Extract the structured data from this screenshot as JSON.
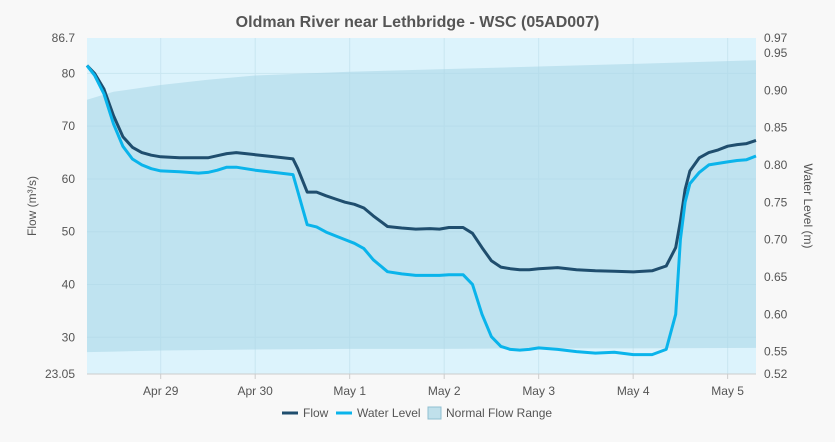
{
  "chart_data": {
    "type": "line",
    "title": "Oldman River near Lethbridge - WSC (05AD007)",
    "x_ticks": [
      "Apr 29",
      "Apr 30",
      "May 1",
      "May 2",
      "May 3",
      "May 4",
      "May 5"
    ],
    "x_range_days": [
      -0.78,
      6.3
    ],
    "y_left": {
      "label": "Flow (m³/s)",
      "range": [
        23.05,
        86.7
      ],
      "ticks": [
        30,
        40,
        50,
        60,
        70,
        80
      ],
      "min_label": "23.05",
      "max_label": "86.7"
    },
    "y_right": {
      "label": "Water Level (m)",
      "range": [
        0.52,
        0.97
      ],
      "ticks": [
        "0.55",
        "0.60",
        "0.65",
        "0.70",
        "0.75",
        "0.80",
        "0.85",
        "0.90",
        "0.95"
      ],
      "min_label": "0.52",
      "max_label": "0.97"
    },
    "grid": true,
    "legend_position": "bottom",
    "series": [
      {
        "name": "Flow",
        "axis": "left",
        "color": "#1f4e6e",
        "x": [
          -0.78,
          -0.7,
          -0.6,
          -0.5,
          -0.4,
          -0.3,
          -0.2,
          -0.1,
          0.0,
          0.2,
          0.4,
          0.5,
          0.6,
          0.7,
          0.8,
          0.9,
          1.0,
          1.2,
          1.4,
          1.45,
          1.55,
          1.65,
          1.75,
          1.85,
          1.95,
          2.05,
          2.15,
          2.25,
          2.4,
          2.55,
          2.7,
          2.85,
          2.95,
          3.05,
          3.2,
          3.3,
          3.4,
          3.5,
          3.6,
          3.7,
          3.8,
          3.9,
          4.0,
          4.2,
          4.4,
          4.6,
          4.8,
          5.0,
          5.2,
          5.35,
          5.45,
          5.5,
          5.55,
          5.6,
          5.7,
          5.8,
          5.9,
          6.0,
          6.1,
          6.2,
          6.3
        ],
        "y": [
          81.5,
          80,
          77,
          72,
          68,
          66,
          65,
          64.5,
          64.2,
          64,
          64,
          64,
          64.4,
          64.8,
          65,
          64.8,
          64.6,
          64.2,
          63.8,
          62,
          57.5,
          57.5,
          56.8,
          56.2,
          55.6,
          55.2,
          54.5,
          53,
          51,
          50.7,
          50.5,
          50.6,
          50.5,
          50.8,
          50.8,
          49.7,
          47,
          44.5,
          43.3,
          43,
          42.8,
          42.8,
          43,
          43.2,
          42.8,
          42.6,
          42.5,
          42.4,
          42.6,
          43.5,
          47,
          52,
          58,
          61.5,
          64,
          65,
          65.5,
          66.2,
          66.5,
          66.7,
          67.3
        ]
      },
      {
        "name": "Water Level",
        "axis": "right",
        "color": "#0ab4eb",
        "x": [
          -0.78,
          -0.7,
          -0.6,
          -0.5,
          -0.4,
          -0.3,
          -0.2,
          -0.1,
          0.0,
          0.2,
          0.4,
          0.5,
          0.6,
          0.7,
          0.8,
          0.9,
          1.0,
          1.2,
          1.4,
          1.45,
          1.55,
          1.65,
          1.75,
          1.85,
          1.95,
          2.05,
          2.15,
          2.25,
          2.4,
          2.55,
          2.7,
          2.85,
          2.95,
          3.05,
          3.2,
          3.3,
          3.4,
          3.5,
          3.6,
          3.7,
          3.8,
          3.9,
          4.0,
          4.2,
          4.4,
          4.6,
          4.8,
          5.0,
          5.2,
          5.35,
          5.45,
          5.5,
          5.55,
          5.6,
          5.7,
          5.8,
          5.9,
          6.0,
          6.1,
          6.2,
          6.3
        ],
        "y": [
          0.933,
          0.92,
          0.895,
          0.855,
          0.825,
          0.808,
          0.8,
          0.795,
          0.792,
          0.791,
          0.789,
          0.79,
          0.793,
          0.797,
          0.797,
          0.795,
          0.793,
          0.79,
          0.787,
          0.765,
          0.72,
          0.717,
          0.71,
          0.705,
          0.7,
          0.695,
          0.688,
          0.673,
          0.657,
          0.654,
          0.652,
          0.652,
          0.652,
          0.653,
          0.653,
          0.64,
          0.6,
          0.57,
          0.557,
          0.553,
          0.552,
          0.553,
          0.555,
          0.553,
          0.55,
          0.548,
          0.549,
          0.546,
          0.546,
          0.553,
          0.6,
          0.7,
          0.75,
          0.775,
          0.79,
          0.8,
          0.802,
          0.804,
          0.806,
          0.807,
          0.812
        ]
      }
    ],
    "band": {
      "name": "Normal Flow Range",
      "axis": "left",
      "color": "#a8d5e6",
      "x": [
        -0.78,
        -0.5,
        0.0,
        0.5,
        1.0,
        2.0,
        3.0,
        4.0,
        5.0,
        6.3
      ],
      "upper": [
        75,
        76.5,
        77.8,
        78.8,
        79.6,
        80.3,
        80.8,
        81.3,
        81.8,
        82.5
      ],
      "lower": [
        27.2,
        27.3,
        27.5,
        27.6,
        27.7,
        27.8,
        27.8,
        27.9,
        27.9,
        28.0
      ]
    }
  }
}
